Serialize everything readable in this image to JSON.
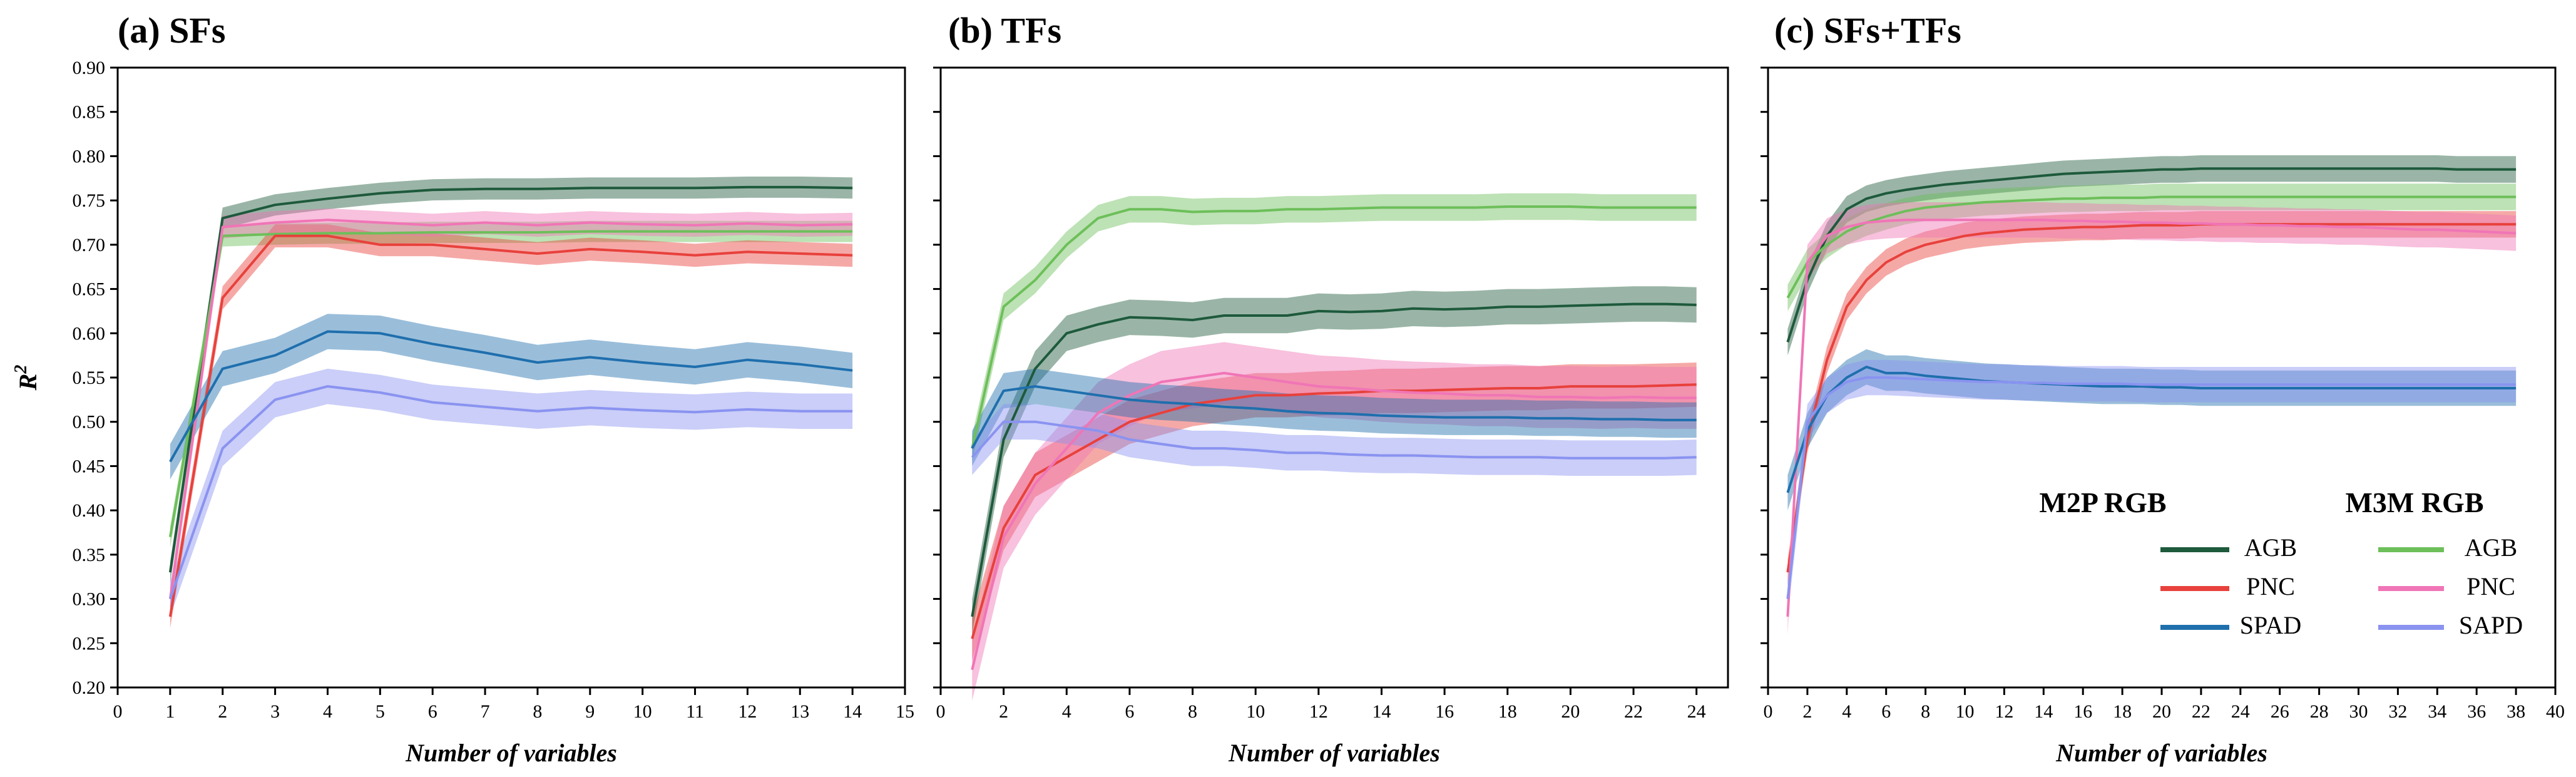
{
  "colors": {
    "M2P_AGB": "#1e5a3c",
    "M3M_AGB": "#6dbf5a",
    "M2P_PNC": "#e8413c",
    "M3M_PNC": "#f075b6",
    "M2P_SPAD": "#1f6fad",
    "M3M_SAPD": "#8a93f0"
  },
  "ylabel_main": "R",
  "ylabel_sup": "2",
  "legend": {
    "headers": [
      "M2P RGB",
      "M3M RGB"
    ],
    "items": [
      {
        "label": "AGB",
        "color_key": "M2P_AGB"
      },
      {
        "label": "AGB",
        "color_key": "M3M_AGB"
      },
      {
        "label": "PNC",
        "color_key": "M2P_PNC"
      },
      {
        "label": "PNC",
        "color_key": "M3M_PNC"
      },
      {
        "label": "SPAD",
        "color_key": "M2P_SPAD"
      },
      {
        "label": "SAPD",
        "color_key": "M3M_SAPD"
      }
    ]
  },
  "chart_data": [
    {
      "type": "line",
      "title": "(a) SFs",
      "xlabel": "Number of variables",
      "ylabel": "R2",
      "xlim": [
        0,
        15
      ],
      "ylim": [
        0.2,
        0.9
      ],
      "xticks": [
        0,
        1,
        2,
        3,
        4,
        5,
        6,
        7,
        8,
        9,
        10,
        11,
        12,
        13,
        14,
        15
      ],
      "yticks": [
        0.2,
        0.25,
        0.3,
        0.35,
        0.4,
        0.45,
        0.5,
        0.55,
        0.6,
        0.65,
        0.7,
        0.75,
        0.8,
        0.85,
        0.9
      ],
      "x": [
        1,
        2,
        3,
        4,
        5,
        6,
        7,
        8,
        9,
        10,
        11,
        12,
        13,
        14
      ],
      "series": [
        {
          "name": "M2P RGB AGB",
          "color_key": "M2P_AGB",
          "band": 0.012,
          "values": [
            0.33,
            0.73,
            0.745,
            0.752,
            0.758,
            0.762,
            0.763,
            0.763,
            0.764,
            0.764,
            0.764,
            0.765,
            0.765,
            0.764
          ]
        },
        {
          "name": "M3M RGB AGB",
          "color_key": "M3M_AGB",
          "band": 0.012,
          "values": [
            0.37,
            0.71,
            0.712,
            0.713,
            0.713,
            0.714,
            0.714,
            0.714,
            0.715,
            0.715,
            0.715,
            0.715,
            0.715,
            0.715
          ]
        },
        {
          "name": "M2P RGB PNC",
          "color_key": "M2P_PNC",
          "band": 0.013,
          "values": [
            0.28,
            0.64,
            0.71,
            0.71,
            0.7,
            0.7,
            0.695,
            0.69,
            0.695,
            0.692,
            0.688,
            0.692,
            0.69,
            0.688
          ]
        },
        {
          "name": "M3M RGB PNC",
          "color_key": "M3M_PNC",
          "band": 0.013,
          "values": [
            0.3,
            0.72,
            0.725,
            0.728,
            0.725,
            0.722,
            0.725,
            0.722,
            0.725,
            0.723,
            0.722,
            0.724,
            0.722,
            0.723
          ]
        },
        {
          "name": "M2P RGB SPAD",
          "color_key": "M2P_SPAD",
          "band": 0.02,
          "values": [
            0.455,
            0.56,
            0.575,
            0.602,
            0.6,
            0.588,
            0.578,
            0.567,
            0.573,
            0.567,
            0.562,
            0.57,
            0.565,
            0.558
          ]
        },
        {
          "name": "M3M RGB SAPD",
          "color_key": "M3M_SAPD",
          "band": 0.02,
          "values": [
            0.3,
            0.47,
            0.525,
            0.54,
            0.533,
            0.522,
            0.517,
            0.512,
            0.516,
            0.513,
            0.511,
            0.514,
            0.512,
            0.512
          ]
        }
      ]
    },
    {
      "type": "line",
      "title": "(b) TFs",
      "xlabel": "Number of variables",
      "ylabel": "R2",
      "xlim": [
        0,
        25
      ],
      "ylim": [
        0.2,
        0.9
      ],
      "xticks": [
        0,
        2,
        4,
        6,
        8,
        10,
        12,
        14,
        16,
        18,
        20,
        22,
        24
      ],
      "yticks": [
        0.2,
        0.25,
        0.3,
        0.35,
        0.4,
        0.45,
        0.5,
        0.55,
        0.6,
        0.65,
        0.7,
        0.75,
        0.8,
        0.85,
        0.9
      ],
      "x": [
        1,
        2,
        3,
        4,
        5,
        6,
        7,
        8,
        9,
        10,
        11,
        12,
        13,
        14,
        15,
        16,
        17,
        18,
        19,
        20,
        21,
        22,
        23,
        24
      ],
      "series": [
        {
          "name": "M2P RGB AGB",
          "color_key": "M2P_AGB",
          "band": 0.02,
          "values": [
            0.28,
            0.48,
            0.56,
            0.6,
            0.61,
            0.618,
            0.617,
            0.615,
            0.62,
            0.62,
            0.62,
            0.625,
            0.624,
            0.625,
            0.628,
            0.627,
            0.628,
            0.63,
            0.63,
            0.631,
            0.632,
            0.633,
            0.633,
            0.632
          ]
        },
        {
          "name": "M3M RGB AGB",
          "color_key": "M3M_AGB",
          "band": 0.015,
          "values": [
            0.47,
            0.63,
            0.66,
            0.7,
            0.73,
            0.74,
            0.74,
            0.737,
            0.738,
            0.738,
            0.74,
            0.74,
            0.741,
            0.742,
            0.742,
            0.742,
            0.742,
            0.743,
            0.743,
            0.743,
            0.742,
            0.742,
            0.742,
            0.742
          ]
        },
        {
          "name": "M2P RGB PNC",
          "color_key": "M2P_PNC",
          "band": 0.025,
          "values": [
            0.255,
            0.38,
            0.44,
            0.46,
            0.48,
            0.5,
            0.51,
            0.52,
            0.525,
            0.53,
            0.53,
            0.532,
            0.533,
            0.535,
            0.535,
            0.536,
            0.537,
            0.538,
            0.538,
            0.54,
            0.54,
            0.54,
            0.541,
            0.542
          ]
        },
        {
          "name": "M3M RGB PNC",
          "color_key": "M3M_PNC",
          "band": 0.035,
          "values": [
            0.22,
            0.37,
            0.43,
            0.47,
            0.51,
            0.53,
            0.545,
            0.55,
            0.555,
            0.55,
            0.545,
            0.54,
            0.538,
            0.535,
            0.533,
            0.532,
            0.53,
            0.53,
            0.528,
            0.528,
            0.527,
            0.528,
            0.527,
            0.527
          ]
        },
        {
          "name": "M2P RGB SPAD",
          "color_key": "M2P_SPAD",
          "band": 0.02,
          "values": [
            0.47,
            0.535,
            0.54,
            0.535,
            0.53,
            0.525,
            0.522,
            0.52,
            0.517,
            0.515,
            0.512,
            0.51,
            0.509,
            0.507,
            0.506,
            0.505,
            0.505,
            0.505,
            0.504,
            0.504,
            0.503,
            0.503,
            0.502,
            0.502
          ]
        },
        {
          "name": "M3M RGB SAPD",
          "color_key": "M3M_SAPD",
          "band": 0.02,
          "values": [
            0.46,
            0.5,
            0.5,
            0.495,
            0.49,
            0.48,
            0.475,
            0.47,
            0.47,
            0.468,
            0.465,
            0.465,
            0.463,
            0.462,
            0.462,
            0.461,
            0.46,
            0.46,
            0.46,
            0.459,
            0.459,
            0.459,
            0.459,
            0.46
          ]
        }
      ]
    },
    {
      "type": "line",
      "title": "(c) SFs+TFs",
      "xlabel": "Number of variables",
      "ylabel": "R2",
      "xlim": [
        0,
        40
      ],
      "ylim": [
        0.2,
        0.9
      ],
      "xticks": [
        0,
        2,
        4,
        6,
        8,
        10,
        12,
        14,
        16,
        18,
        20,
        22,
        24,
        26,
        28,
        30,
        32,
        34,
        36,
        38,
        40
      ],
      "yticks": [
        0.2,
        0.25,
        0.3,
        0.35,
        0.4,
        0.45,
        0.5,
        0.55,
        0.6,
        0.65,
        0.7,
        0.75,
        0.8,
        0.85,
        0.9
      ],
      "x": [
        1,
        2,
        3,
        4,
        5,
        6,
        7,
        8,
        9,
        10,
        11,
        12,
        13,
        14,
        15,
        16,
        17,
        18,
        19,
        20,
        21,
        22,
        23,
        24,
        25,
        26,
        27,
        28,
        29,
        30,
        31,
        32,
        33,
        34,
        35,
        36,
        37,
        38
      ],
      "series": [
        {
          "name": "M2P RGB AGB",
          "color_key": "M2P_AGB",
          "band": 0.015,
          "values": [
            0.59,
            0.66,
            0.71,
            0.74,
            0.752,
            0.758,
            0.762,
            0.765,
            0.768,
            0.77,
            0.772,
            0.774,
            0.776,
            0.778,
            0.78,
            0.781,
            0.782,
            0.783,
            0.784,
            0.785,
            0.785,
            0.786,
            0.786,
            0.786,
            0.786,
            0.786,
            0.786,
            0.786,
            0.786,
            0.786,
            0.786,
            0.786,
            0.786,
            0.786,
            0.785,
            0.785,
            0.785,
            0.785
          ]
        },
        {
          "name": "M3M RGB AGB",
          "color_key": "M3M_AGB",
          "band": 0.015,
          "values": [
            0.64,
            0.68,
            0.7,
            0.715,
            0.725,
            0.732,
            0.738,
            0.742,
            0.744,
            0.746,
            0.748,
            0.749,
            0.75,
            0.751,
            0.752,
            0.752,
            0.753,
            0.753,
            0.753,
            0.754,
            0.754,
            0.754,
            0.754,
            0.754,
            0.754,
            0.754,
            0.754,
            0.754,
            0.754,
            0.754,
            0.754,
            0.754,
            0.754,
            0.754,
            0.754,
            0.754,
            0.754,
            0.754
          ]
        },
        {
          "name": "M2P RGB PNC",
          "color_key": "M2P_PNC",
          "band": 0.015,
          "values": [
            0.33,
            0.48,
            0.57,
            0.63,
            0.66,
            0.68,
            0.692,
            0.7,
            0.705,
            0.71,
            0.713,
            0.715,
            0.717,
            0.718,
            0.719,
            0.72,
            0.72,
            0.721,
            0.722,
            0.722,
            0.722,
            0.723,
            0.723,
            0.723,
            0.723,
            0.723,
            0.723,
            0.723,
            0.723,
            0.723,
            0.723,
            0.723,
            0.723,
            0.723,
            0.723,
            0.723,
            0.723,
            0.723
          ]
        },
        {
          "name": "M3M RGB PNC",
          "color_key": "M3M_PNC",
          "band": 0.02,
          "values": [
            0.28,
            0.68,
            0.71,
            0.72,
            0.725,
            0.727,
            0.728,
            0.728,
            0.728,
            0.728,
            0.728,
            0.728,
            0.728,
            0.728,
            0.727,
            0.727,
            0.726,
            0.726,
            0.725,
            0.725,
            0.724,
            0.724,
            0.723,
            0.723,
            0.722,
            0.722,
            0.721,
            0.721,
            0.72,
            0.72,
            0.719,
            0.718,
            0.717,
            0.717,
            0.716,
            0.715,
            0.714,
            0.713
          ]
        },
        {
          "name": "M2P RGB SPAD",
          "color_key": "M2P_SPAD",
          "band": 0.02,
          "values": [
            0.42,
            0.49,
            0.53,
            0.55,
            0.562,
            0.555,
            0.555,
            0.552,
            0.55,
            0.548,
            0.546,
            0.545,
            0.544,
            0.543,
            0.542,
            0.541,
            0.54,
            0.54,
            0.54,
            0.539,
            0.539,
            0.538,
            0.538,
            0.538,
            0.538,
            0.538,
            0.538,
            0.538,
            0.538,
            0.538,
            0.538,
            0.538,
            0.538,
            0.538,
            0.538,
            0.538,
            0.538,
            0.538
          ]
        },
        {
          "name": "M3M RGB SAPD",
          "color_key": "M3M_SAPD",
          "band": 0.02,
          "values": [
            0.3,
            0.5,
            0.53,
            0.545,
            0.55,
            0.55,
            0.549,
            0.548,
            0.547,
            0.546,
            0.545,
            0.545,
            0.544,
            0.544,
            0.543,
            0.543,
            0.543,
            0.543,
            0.542,
            0.542,
            0.542,
            0.542,
            0.542,
            0.542,
            0.542,
            0.542,
            0.542,
            0.542,
            0.542,
            0.542,
            0.542,
            0.542,
            0.542,
            0.542,
            0.542,
            0.542,
            0.542,
            0.542
          ]
        }
      ]
    }
  ]
}
